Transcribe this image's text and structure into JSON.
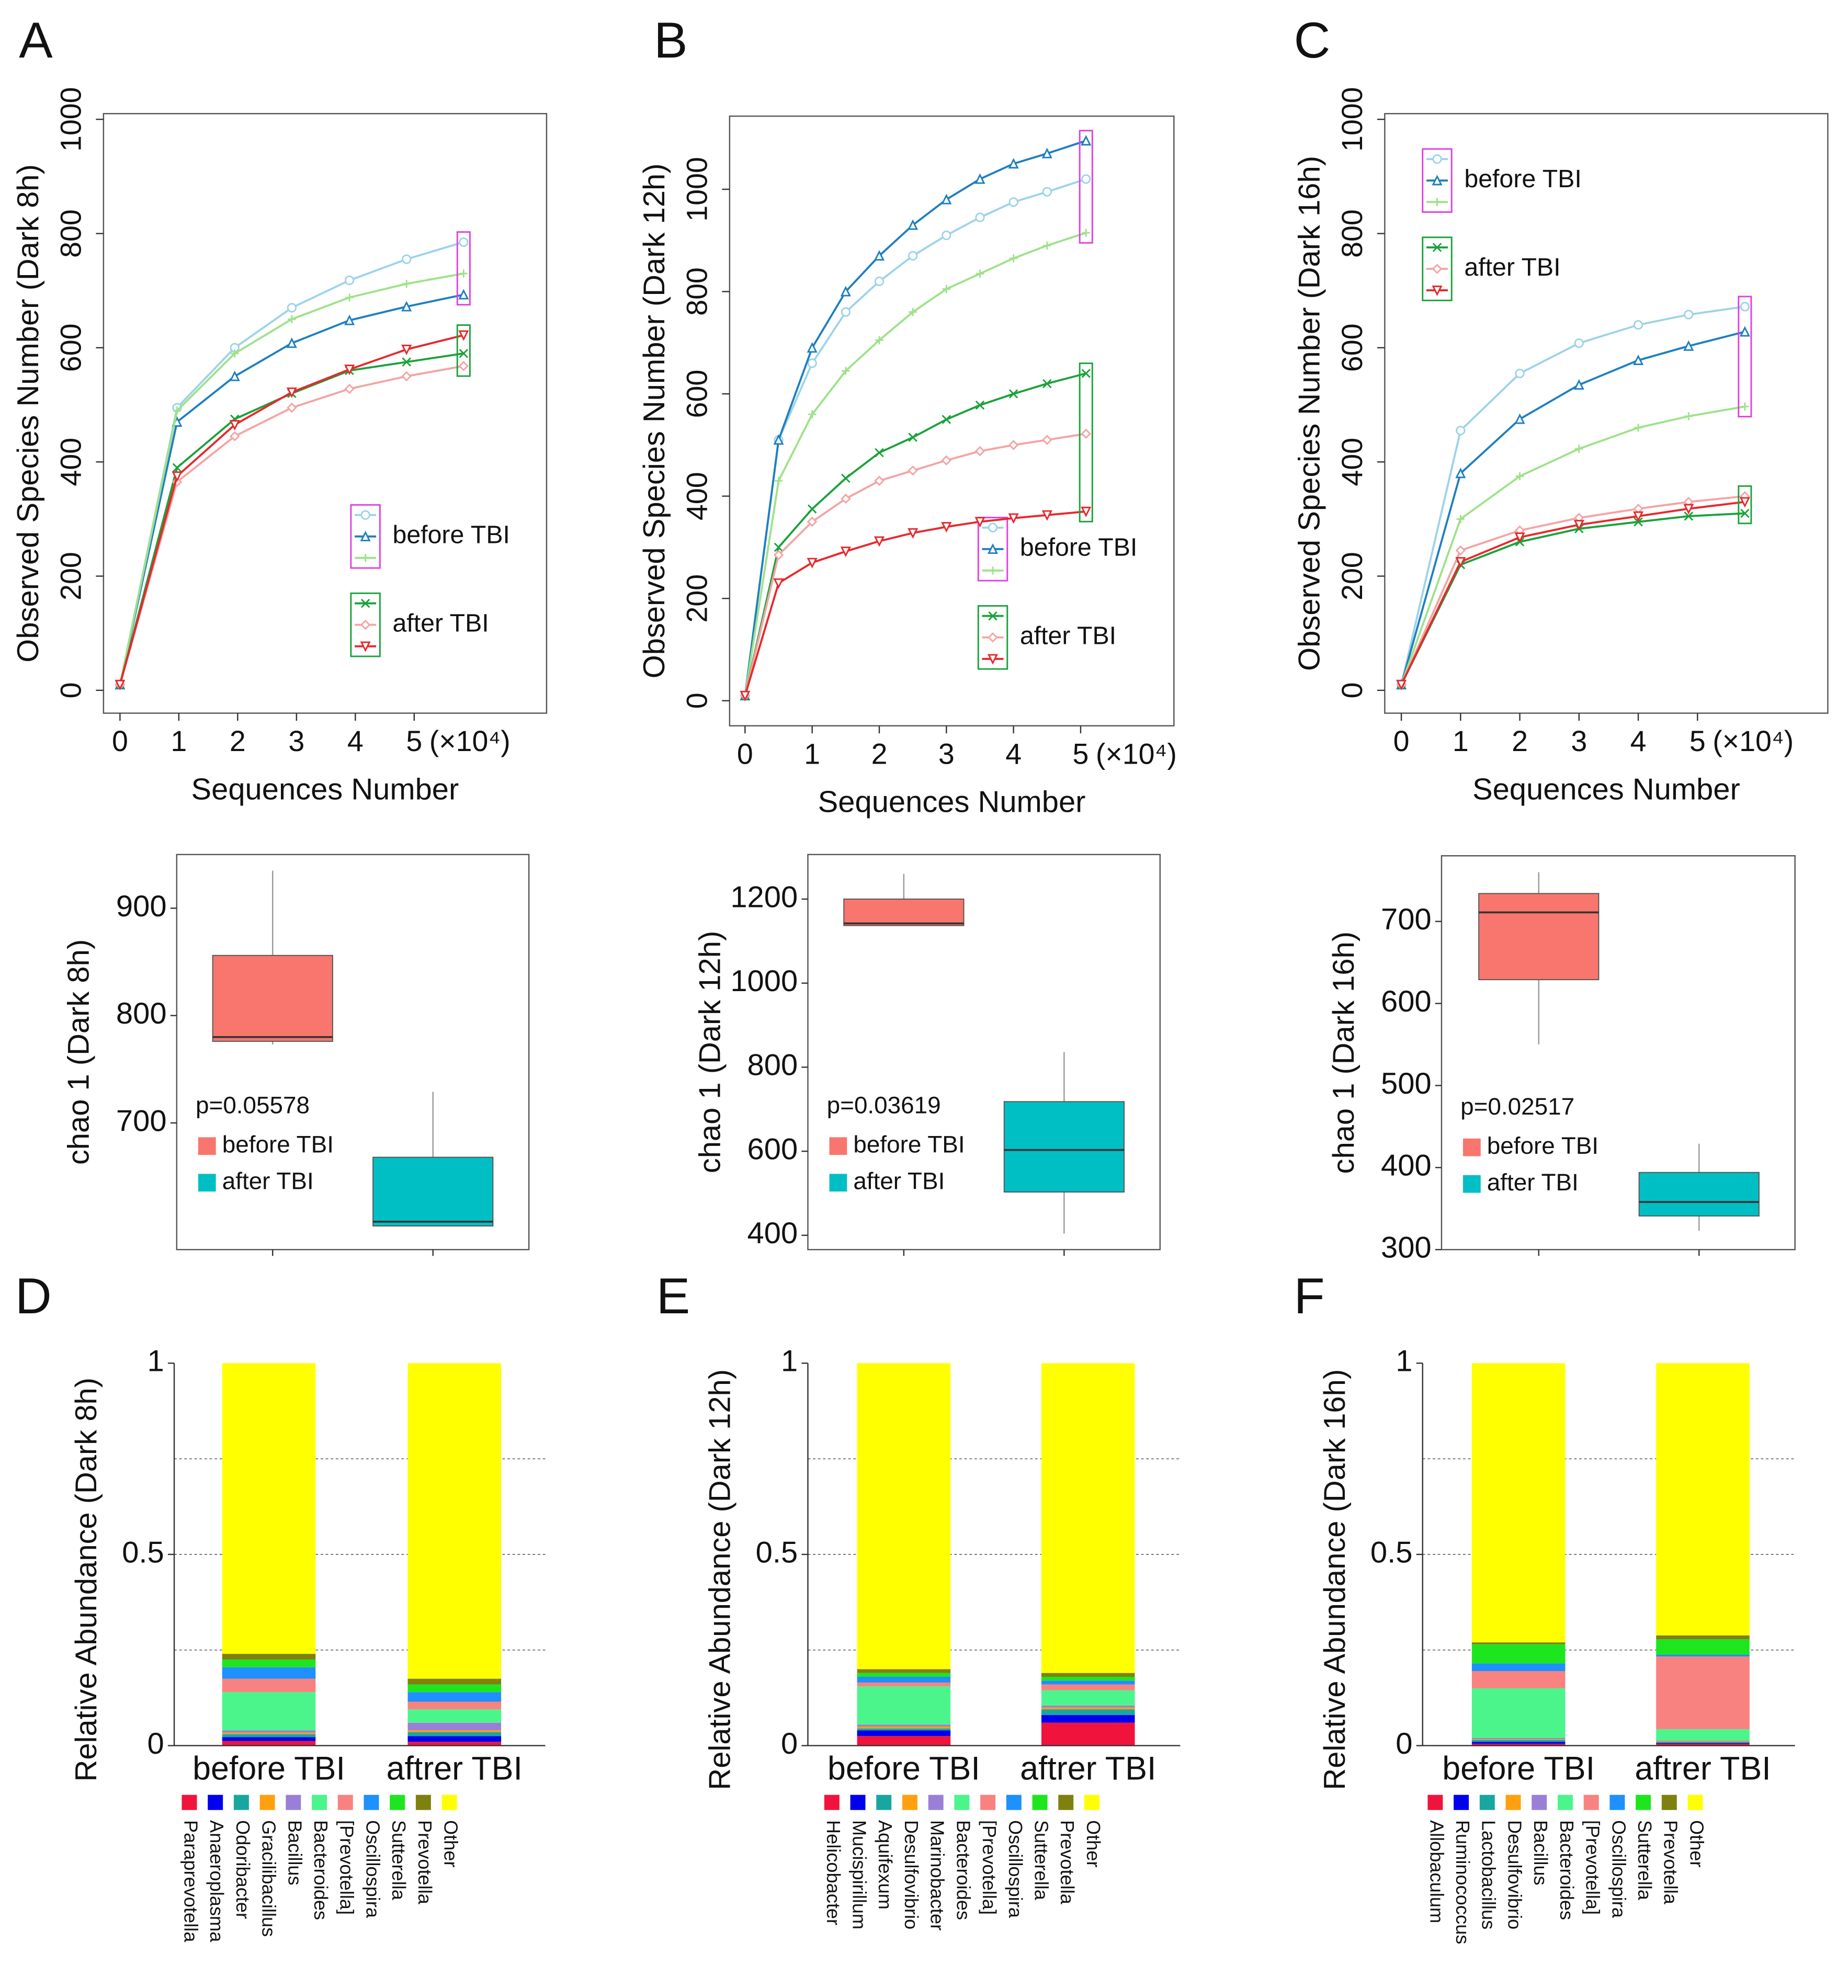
{
  "chart_data": [
    {
      "type": "line",
      "panel": "A",
      "xlabel": "Sequences Number",
      "ylabel": "Observed Species Number (Dark 8h)",
      "x_unit": "(×10⁴)",
      "x": [
        0,
        0.97,
        1.95,
        2.92,
        3.9,
        4.87,
        5.84
      ],
      "xlim": [
        -0.28,
        7.25
      ],
      "xticks": [
        0,
        1,
        2,
        3,
        4,
        5
      ],
      "ylim": [
        -40,
        1010
      ],
      "yticks": [
        0,
        200,
        400,
        600,
        800,
        1000
      ],
      "legend": "lower right",
      "groups": [
        {
          "name": "before TBI",
          "bracket_color": "#e040e0",
          "series": [
            {
              "color": "#9dd3ea",
              "marker": "circle",
              "values": [
                10,
                495,
                600,
                670,
                718,
                755,
                785
              ]
            },
            {
              "color": "#1f7fc0",
              "marker": "triangle",
              "values": [
                10,
                470,
                550,
                608,
                648,
                672,
                693
              ]
            },
            {
              "color": "#9ee28a",
              "marker": "plus",
              "values": [
                10,
                490,
                590,
                650,
                688,
                712,
                730
              ]
            }
          ]
        },
        {
          "name": "after TBI",
          "bracket_color": "#1aa23a",
          "series": [
            {
              "color": "#1aa23a",
              "marker": "cross",
              "values": [
                10,
                390,
                475,
                520,
                560,
                575,
                590
              ]
            },
            {
              "color": "#f4a4a4",
              "marker": "diamond",
              "values": [
                10,
                365,
                445,
                495,
                528,
                550,
                568
              ]
            },
            {
              "color": "#e8282c",
              "marker": "triangle-down",
              "values": [
                10,
                375,
                465,
                522,
                562,
                597,
                622
              ]
            }
          ]
        }
      ]
    },
    {
      "type": "line",
      "panel": "B",
      "xlabel": "Sequences Number",
      "ylabel": "Observed Species Number (Dark 12h)",
      "x_unit": "(×10⁴)",
      "x": [
        0,
        0.5,
        1,
        1.5,
        2,
        2.5,
        3,
        3.5,
        4,
        4.5,
        5.08
      ],
      "xlim": [
        -0.23,
        6.39
      ],
      "xticks": [
        0,
        1,
        2,
        3,
        4,
        5
      ],
      "ylim": [
        -49,
        1143
      ],
      "yticks": [
        0,
        200,
        400,
        600,
        800,
        1000
      ],
      "legend": "lower right",
      "groups": [
        {
          "name": "before TBI",
          "bracket_color": "#e040e0",
          "series": [
            {
              "color": "#9dd3ea",
              "marker": "circle",
              "values": [
                10,
                510,
                660,
                760,
                820,
                870,
                910,
                945,
                975,
                995,
                1020
              ]
            },
            {
              "color": "#1f7fc0",
              "marker": "triangle",
              "values": [
                10,
                510,
                690,
                800,
                870,
                930,
                980,
                1020,
                1050,
                1070,
                1095
              ]
            },
            {
              "color": "#9ee28a",
              "marker": "plus",
              "values": [
                10,
                430,
                560,
                645,
                705,
                760,
                805,
                835,
                865,
                890,
                915
              ]
            }
          ]
        },
        {
          "name": "after TBI",
          "bracket_color": "#1aa23a",
          "series": [
            {
              "color": "#1aa23a",
              "marker": "cross",
              "values": [
                10,
                300,
                375,
                435,
                485,
                515,
                550,
                578,
                600,
                620,
                640
              ]
            },
            {
              "color": "#f4a4a4",
              "marker": "diamond",
              "values": [
                10,
                285,
                350,
                395,
                430,
                450,
                470,
                488,
                500,
                510,
                522
              ]
            },
            {
              "color": "#e8282c",
              "marker": "triangle-down",
              "values": [
                10,
                230,
                270,
                292,
                312,
                328,
                340,
                350,
                357,
                363,
                370
              ]
            }
          ]
        }
      ]
    },
    {
      "type": "line",
      "panel": "C",
      "xlabel": "Sequences Number",
      "ylabel": "Observed Species Number (Dark 16h)",
      "x_unit": "(×10⁴)",
      "x": [
        0,
        1,
        2,
        3,
        4,
        4.85,
        5.8
      ],
      "xlim": [
        -0.28,
        7.2
      ],
      "xticks": [
        0,
        1,
        2,
        3,
        4,
        5
      ],
      "ylim": [
        -40,
        1010
      ],
      "yticks": [
        0,
        200,
        400,
        600,
        800,
        1000
      ],
      "legend": "upper left",
      "groups": [
        {
          "name": "before TBI",
          "bracket_color": "#e040e0",
          "series": [
            {
              "color": "#9dd3ea",
              "marker": "circle",
              "values": [
                10,
                455,
                555,
                608,
                640,
                658,
                672
              ]
            },
            {
              "color": "#1f7fc0",
              "marker": "triangle",
              "values": [
                10,
                380,
                475,
                535,
                578,
                603,
                628
              ]
            },
            {
              "color": "#9ee28a",
              "marker": "plus",
              "values": [
                10,
                300,
                375,
                423,
                460,
                480,
                497
              ]
            }
          ]
        },
        {
          "name": "after TBI",
          "bracket_color": "#1aa23a",
          "series": [
            {
              "color": "#1aa23a",
              "marker": "cross",
              "values": [
                10,
                220,
                260,
                283,
                295,
                305,
                310
              ]
            },
            {
              "color": "#f4a4a4",
              "marker": "diamond",
              "values": [
                10,
                245,
                280,
                302,
                318,
                330,
                340
              ]
            },
            {
              "color": "#e8282c",
              "marker": "triangle-down",
              "values": [
                10,
                225,
                268,
                290,
                305,
                318,
                330
              ]
            }
          ]
        }
      ]
    },
    {
      "type": "box",
      "ylabel": "chao 1 (Dark 8h)",
      "annotation": "p=0.05578",
      "ylim": [
        582,
        950
      ],
      "yticks": [
        700,
        800,
        900
      ],
      "categories": [
        null,
        null
      ],
      "boxes": [
        {
          "name": "before TBI",
          "color": "#f8766d",
          "whislo": 773,
          "q1": 776,
          "median": 780,
          "q3": 856,
          "whishi": 935
        },
        {
          "name": "after TBI",
          "color": "#00bfc4",
          "whislo": 604,
          "q1": 604,
          "median": 608,
          "q3": 668,
          "whishi": 729
        }
      ]
    },
    {
      "type": "box",
      "ylabel": "chao 1 (Dark 12h)",
      "annotation": "p=0.03619",
      "ylim": [
        366,
        1306
      ],
      "yticks": [
        400,
        600,
        800,
        1000,
        1200
      ],
      "categories": [
        null,
        null
      ],
      "boxes": [
        {
          "name": "before TBI",
          "color": "#f8766d",
          "whislo": 1137,
          "q1": 1137,
          "median": 1142,
          "q3": 1200,
          "whishi": 1260
        },
        {
          "name": "after TBI",
          "color": "#00bfc4",
          "whislo": 404,
          "q1": 503,
          "median": 603,
          "q3": 718,
          "whishi": 836
        }
      ]
    },
    {
      "type": "box",
      "ylabel": "chao 1 (Dark 16h)",
      "annotation": "p=0.02517",
      "ylim": [
        300,
        780
      ],
      "yticks": [
        300,
        400,
        500,
        600,
        700
      ],
      "categories": [
        null,
        null
      ],
      "boxes": [
        {
          "name": "before TBI",
          "color": "#f8766d",
          "whislo": 550,
          "q1": 629,
          "median": 711,
          "q3": 734,
          "whishi": 760
        },
        {
          "name": "after TBI",
          "color": "#00bfc4",
          "whislo": 323,
          "q1": 341,
          "median": 358,
          "q3": 394,
          "whishi": 429
        }
      ]
    },
    {
      "type": "stacked_bar",
      "panel": "D",
      "ylabel": "Relative Abundance (Dark 8h)",
      "ylim": [
        0,
        1
      ],
      "yticks": [
        0,
        0.5,
        1
      ],
      "grid_lines": [
        0.25,
        0.5,
        0.75
      ],
      "categories": [
        "before TBI",
        "aftrer TBI"
      ],
      "series": [
        {
          "name": "Paraprevotella",
          "color": "#f0143c",
          "values": [
            0.012,
            0.01
          ]
        },
        {
          "name": "Anaeroplasma",
          "color": "#0000ee",
          "values": [
            0.01,
            0.015
          ]
        },
        {
          "name": "Odoribacter",
          "color": "#1aa6a0",
          "values": [
            0.008,
            0.01
          ]
        },
        {
          "name": "Gracilibacillus",
          "color": "#ffa010",
          "values": [
            0.004,
            0.005
          ]
        },
        {
          "name": "Bacillus",
          "color": "#9b7fd6",
          "values": [
            0.006,
            0.02
          ]
        },
        {
          "name": "Bacteroides",
          "color": "#4cf58c",
          "values": [
            0.1,
            0.035
          ]
        },
        {
          "name": "[Prevotella]",
          "color": "#f8827f",
          "values": [
            0.035,
            0.02
          ]
        },
        {
          "name": "Oscillospira",
          "color": "#1e90ff",
          "values": [
            0.03,
            0.025
          ]
        },
        {
          "name": "Sutterella",
          "color": "#1ee61e",
          "values": [
            0.02,
            0.02
          ]
        },
        {
          "name": "Prevotella",
          "color": "#808010",
          "values": [
            0.015,
            0.015
          ]
        },
        {
          "name": "Other",
          "color": "#ffff00",
          "values": [
            0.76,
            0.825
          ]
        }
      ]
    },
    {
      "type": "stacked_bar",
      "panel": "E",
      "ylabel": "Relative Abundance (Dark 12h)",
      "ylim": [
        0,
        1
      ],
      "yticks": [
        0,
        0.5,
        1
      ],
      "grid_lines": [
        0.25,
        0.5,
        0.75
      ],
      "categories": [
        "before TBI",
        "aftrer TBI"
      ],
      "series": [
        {
          "name": "Helicobacter",
          "color": "#f0143c",
          "values": [
            0.025,
            0.06
          ]
        },
        {
          "name": "Mucispirillum",
          "color": "#0000ee",
          "values": [
            0.015,
            0.02
          ]
        },
        {
          "name": "Aquifexum",
          "color": "#1aa6a0",
          "values": [
            0.005,
            0.015
          ]
        },
        {
          "name": "Desulfovibrio",
          "color": "#ffa010",
          "values": [
            0.005,
            0.005
          ]
        },
        {
          "name": "Marinobacter",
          "color": "#9b7fd6",
          "values": [
            0.005,
            0.005
          ]
        },
        {
          "name": "Bacteroides",
          "color": "#4cf58c",
          "values": [
            0.1,
            0.04
          ]
        },
        {
          "name": "[Prevotella]",
          "color": "#f8827f",
          "values": [
            0.01,
            0.015
          ]
        },
        {
          "name": "Oscillospira",
          "color": "#1e90ff",
          "values": [
            0.015,
            0.01
          ]
        },
        {
          "name": "Sutterella",
          "color": "#1ee61e",
          "values": [
            0.01,
            0.01
          ]
        },
        {
          "name": "Prevotella",
          "color": "#808010",
          "values": [
            0.01,
            0.01
          ]
        },
        {
          "name": "Other",
          "color": "#ffff00",
          "values": [
            0.8,
            0.81
          ]
        }
      ]
    },
    {
      "type": "stacked_bar",
      "panel": "F",
      "ylabel": "Relative Abundance (Dark 16h)",
      "ylim": [
        0,
        1
      ],
      "yticks": [
        0,
        0.5,
        1
      ],
      "grid_lines": [
        0.25,
        0.5,
        0.75
      ],
      "categories": [
        "before TBI",
        "aftrer TBI"
      ],
      "series": [
        {
          "name": "Allobaculum",
          "color": "#f0143c",
          "values": [
            0.005,
            0.005
          ]
        },
        {
          "name": "Ruminococcus",
          "color": "#0000ee",
          "values": [
            0.005,
            0.002
          ]
        },
        {
          "name": "Lactobacillus",
          "color": "#1aa6a0",
          "values": [
            0.005,
            0.002
          ]
        },
        {
          "name": "Desulfovibrio",
          "color": "#ffa010",
          "values": [
            0.002,
            0.002
          ]
        },
        {
          "name": "Bacillus",
          "color": "#9b7fd6",
          "values": [
            0.003,
            0.002
          ]
        },
        {
          "name": "Bacteroides",
          "color": "#4cf58c",
          "values": [
            0.13,
            0.03
          ]
        },
        {
          "name": "[Prevotella]",
          "color": "#f8827f",
          "values": [
            0.045,
            0.19
          ]
        },
        {
          "name": "Oscillospira",
          "color": "#1e90ff",
          "values": [
            0.02,
            0.005
          ]
        },
        {
          "name": "Sutterella",
          "color": "#1ee61e",
          "values": [
            0.05,
            0.04
          ]
        },
        {
          "name": "Prevotella",
          "color": "#808010",
          "values": [
            0.005,
            0.01
          ]
        },
        {
          "name": "Other",
          "color": "#ffff00",
          "values": [
            0.73,
            0.712
          ]
        }
      ]
    }
  ]
}
